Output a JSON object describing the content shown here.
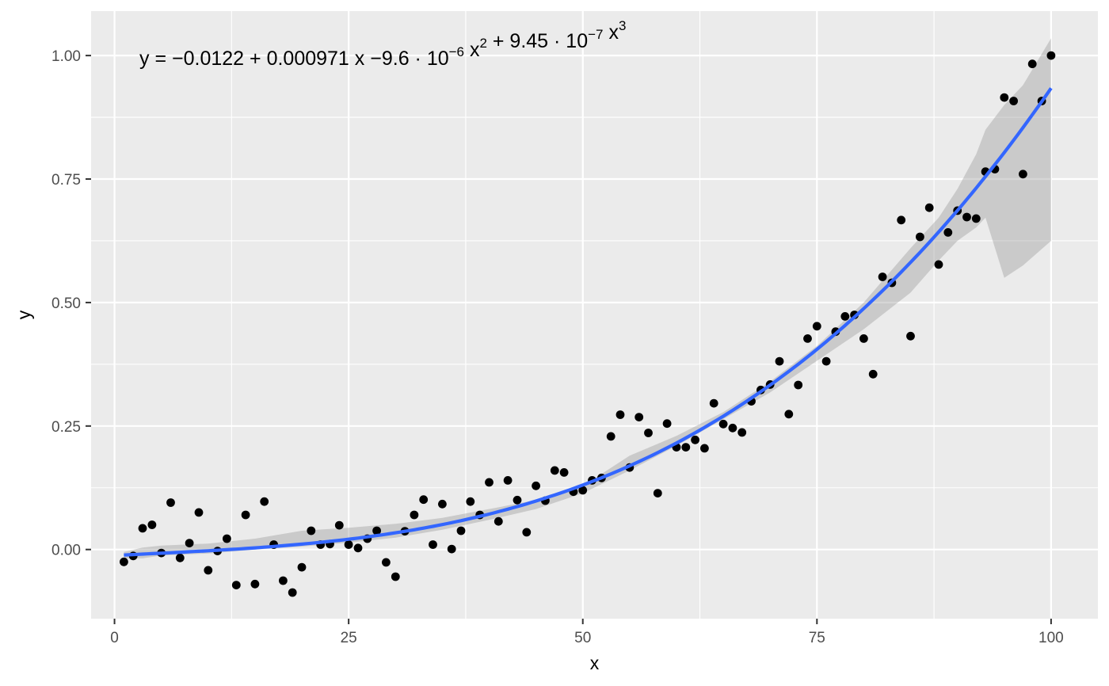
{
  "chart_data": {
    "type": "scatter",
    "xlabel": "x",
    "ylabel": "y",
    "xlim": [
      -2.5,
      105
    ],
    "ylim": [
      -0.14,
      1.09
    ],
    "x_ticks": [
      0,
      25,
      50,
      75,
      100
    ],
    "x_tick_labels": [
      "0",
      "25",
      "50",
      "75",
      "100"
    ],
    "y_ticks": [
      0,
      0.25,
      0.5,
      0.75,
      1.0
    ],
    "y_tick_labels": [
      "0.00",
      "0.25",
      "0.50",
      "0.75",
      "1.00"
    ],
    "grid": true,
    "annotation": {
      "parts": [
        {
          "t": "y = "
        },
        {
          "t": "−",
          "cls": "minus"
        },
        {
          "t": "0.0122 + 0.000971 x "
        },
        {
          "t": "−",
          "cls": "minus"
        },
        {
          "t": "9.6 · 10"
        },
        {
          "t": "−6",
          "sup": true
        },
        {
          "t": " x"
        },
        {
          "t": "2",
          "sup": true
        },
        {
          "t": " + 9.45 · 10"
        },
        {
          "t": "−7",
          "sup": true
        },
        {
          "t": " x"
        },
        {
          "t": "3",
          "sup": true
        }
      ]
    },
    "fit": {
      "method": "cubic polynomial",
      "coefficients": [
        -0.0122,
        0.000971,
        -9.6e-06,
        9.45e-07
      ],
      "x_range": [
        1,
        100
      ],
      "color": "#3366FF",
      "ribbon_color": "#999999"
    },
    "ribbon": {
      "x": [
        1,
        3,
        5,
        10,
        15,
        20,
        25,
        30,
        35,
        40,
        45,
        50,
        55,
        60,
        65,
        70,
        75,
        80,
        85,
        88,
        90,
        92,
        93,
        95,
        97,
        100
      ],
      "lower": [
        -0.018,
        -0.018,
        -0.012,
        -0.008,
        0.0,
        0.006,
        0.014,
        0.024,
        0.04,
        0.06,
        0.082,
        0.114,
        0.16,
        0.21,
        0.264,
        0.318,
        0.382,
        0.446,
        0.52,
        0.585,
        0.625,
        0.652,
        0.672,
        0.55,
        0.575,
        0.625
      ],
      "upper": [
        -0.005,
        0.004,
        0.008,
        0.012,
        0.022,
        0.038,
        0.044,
        0.052,
        0.064,
        0.082,
        0.1,
        0.128,
        0.19,
        0.23,
        0.278,
        0.34,
        0.412,
        0.5,
        0.61,
        0.672,
        0.73,
        0.8,
        0.85,
        0.9,
        0.94,
        1.035
      ]
    },
    "series": [
      {
        "color": "#000000",
        "x": [
          1,
          2,
          3,
          4,
          5,
          6,
          7,
          8,
          9,
          10,
          11,
          12,
          13,
          14,
          15,
          16,
          17,
          18,
          19,
          20,
          21,
          22,
          23,
          24,
          25,
          26,
          27,
          28,
          29,
          30,
          31,
          32,
          33,
          34,
          35,
          36,
          37,
          38,
          39,
          40,
          41,
          42,
          43,
          44,
          45,
          46,
          47,
          48,
          49,
          50,
          51,
          52,
          53,
          54,
          55,
          56,
          57,
          58,
          59,
          60,
          61,
          62,
          63,
          64,
          65,
          66,
          67,
          68,
          69,
          70,
          71,
          72,
          73,
          74,
          75,
          76,
          77,
          78,
          79,
          80,
          81,
          82,
          83,
          84,
          85,
          86,
          87,
          88,
          89,
          90,
          91,
          92,
          93,
          94,
          95,
          96,
          97,
          98,
          99,
          100
        ],
        "y": [
          -0.025,
          -0.013,
          0.043,
          0.05,
          -0.007,
          0.095,
          -0.017,
          0.013,
          0.075,
          -0.042,
          -0.003,
          0.022,
          -0.072,
          0.07,
          -0.07,
          0.097,
          0.01,
          -0.063,
          -0.087,
          -0.036,
          0.038,
          0.01,
          0.011,
          0.049,
          0.01,
          0.003,
          0.022,
          0.038,
          -0.026,
          -0.055,
          0.037,
          0.07,
          0.101,
          0.01,
          0.092,
          0.001,
          0.038,
          0.097,
          0.07,
          0.136,
          0.057,
          0.14,
          0.1,
          0.035,
          0.129,
          0.099,
          0.16,
          0.156,
          0.117,
          0.12,
          0.14,
          0.145,
          0.229,
          0.273,
          0.166,
          0.268,
          0.236,
          0.114,
          0.255,
          0.207,
          0.207,
          0.222,
          0.205,
          0.296,
          0.254,
          0.246,
          0.237,
          0.3,
          0.323,
          0.334,
          0.381,
          0.274,
          0.333,
          0.427,
          0.452,
          0.381,
          0.441,
          0.472,
          0.475,
          0.427,
          0.355,
          0.552,
          0.54,
          0.667,
          0.432,
          0.633,
          0.692,
          0.577,
          0.642,
          0.686,
          0.673,
          0.67,
          0.765,
          0.77,
          0.915,
          0.908,
          0.76,
          0.983,
          0.908,
          1.0
        ]
      }
    ]
  }
}
